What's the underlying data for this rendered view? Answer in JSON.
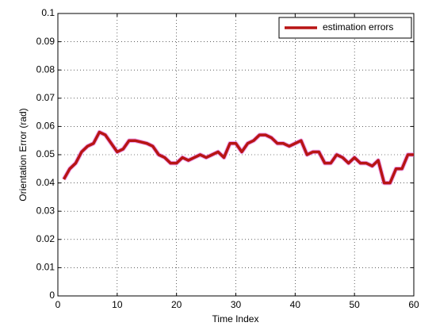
{
  "chart_data": {
    "type": "line",
    "xlabel": "Time Index",
    "ylabel": "Orientation Error (rad)",
    "x": [
      1,
      2,
      3,
      4,
      5,
      6,
      7,
      8,
      9,
      10,
      11,
      12,
      13,
      14,
      15,
      16,
      17,
      18,
      19,
      20,
      21,
      22,
      23,
      24,
      25,
      26,
      27,
      28,
      29,
      30,
      31,
      32,
      33,
      34,
      35,
      36,
      37,
      38,
      39,
      40,
      41,
      42,
      43,
      44,
      45,
      46,
      47,
      48,
      49,
      50,
      51,
      52,
      53,
      54,
      55,
      56,
      57,
      58,
      59,
      60
    ],
    "series": [
      {
        "name": "estimation errors",
        "color": "#b81414",
        "values": [
          0.0413,
          0.045,
          0.047,
          0.051,
          0.053,
          0.054,
          0.058,
          0.057,
          0.054,
          0.051,
          0.052,
          0.055,
          0.055,
          0.0545,
          0.054,
          0.053,
          0.05,
          0.049,
          0.047,
          0.047,
          0.049,
          0.048,
          0.049,
          0.05,
          0.049,
          0.05,
          0.051,
          0.049,
          0.054,
          0.054,
          0.051,
          0.054,
          0.055,
          0.057,
          0.057,
          0.056,
          0.054,
          0.054,
          0.053,
          0.054,
          0.055,
          0.05,
          0.051,
          0.051,
          0.047,
          0.047,
          0.05,
          0.049,
          0.047,
          0.049,
          0.047,
          0.047,
          0.046,
          0.048,
          0.04,
          0.04,
          0.045,
          0.045,
          0.05,
          0.05
        ]
      }
    ],
    "xlim": [
      0,
      60
    ],
    "xticks": [
      0,
      10,
      20,
      30,
      40,
      50,
      60
    ],
    "ylim": [
      0,
      0.1
    ],
    "yticks": [
      0,
      0.01,
      0.02,
      0.03,
      0.04,
      0.05,
      0.06,
      0.07,
      0.08,
      0.09,
      0.1
    ],
    "grid": true,
    "legend": "upper right"
  }
}
